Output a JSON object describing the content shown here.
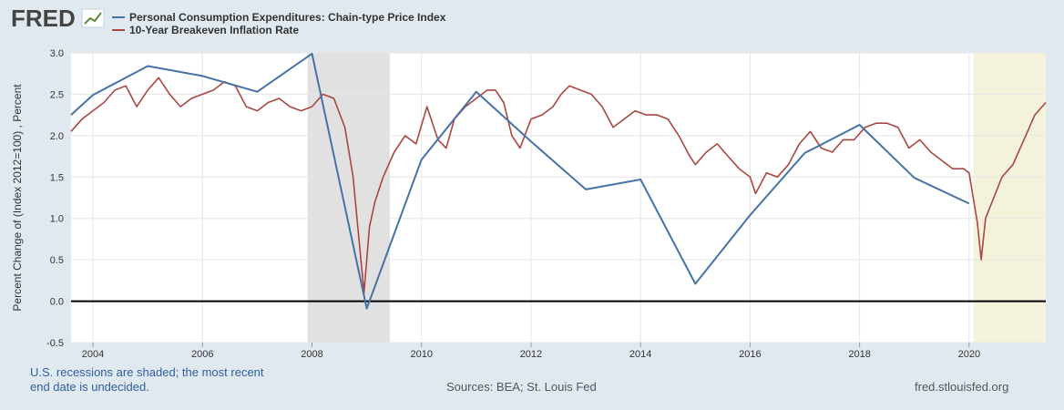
{
  "header": {
    "logo_text": "FRED",
    "logo_icon": "chart-line-icon"
  },
  "legend": [
    {
      "label": "Personal Consumption Expenditures: Chain-type Price Index",
      "color": "#4572a7"
    },
    {
      "label": "10-Year Breakeven Inflation Rate",
      "color": "#aa4643"
    }
  ],
  "footer": {
    "note_line1": "U.S. recessions are shaded; the most recent",
    "note_line2": "end date is undecided.",
    "sources": "Sources: BEA; St. Louis Fed",
    "site": "fred.stlouisfed.org"
  },
  "colors": {
    "background": "#e1e9f0",
    "plot_background": "#ffffff",
    "recession_shade": "#e1e1e1",
    "undecided_shade": "#f5f2dc",
    "pce": "#4572a7",
    "breakeven": "#aa4643"
  },
  "chart_data": {
    "type": "line",
    "title": "",
    "xlabel": "",
    "ylabel": "Percent Change of (Index 2012=100) , Percent",
    "xlim": [
      2003.6,
      2021.4
    ],
    "ylim": [
      -0.5,
      3.0
    ],
    "x_ticks": [
      2004,
      2006,
      2008,
      2010,
      2012,
      2014,
      2016,
      2018,
      2020
    ],
    "y_ticks": [
      -0.5,
      0.0,
      0.5,
      1.0,
      1.5,
      2.0,
      2.5,
      3.0
    ],
    "y_tick_labels": [
      "-0.5",
      "0.0",
      "0.5",
      "1.0",
      "1.5",
      "2.0",
      "2.5",
      "3.0"
    ],
    "zero_line": 0,
    "recessions": [
      {
        "start": 2007.92,
        "end": 2009.42,
        "kind": "recession"
      },
      {
        "start": 2020.08,
        "end": 2021.4,
        "kind": "undecided"
      }
    ],
    "series": [
      {
        "name": "Personal Consumption Expenditures: Chain-type Price Index",
        "color": "#4572a7",
        "x": [
          2003.6,
          2004,
          2005,
          2006,
          2007,
          2008,
          2009,
          2010,
          2011,
          2012,
          2013,
          2014,
          2015,
          2016,
          2017,
          2018,
          2019,
          2020
        ],
        "y": [
          2.25,
          2.49,
          2.84,
          2.72,
          2.53,
          2.99,
          -0.09,
          1.71,
          2.53,
          1.93,
          1.35,
          1.47,
          0.21,
          1.04,
          1.79,
          2.13,
          1.49,
          1.18
        ]
      },
      {
        "name": "10-Year Breakeven Inflation Rate",
        "color": "#aa4643",
        "x": [
          2003.6,
          2003.8,
          2004.0,
          2004.2,
          2004.4,
          2004.6,
          2004.8,
          2005.0,
          2005.2,
          2005.4,
          2005.6,
          2005.8,
          2006.0,
          2006.2,
          2006.4,
          2006.6,
          2006.8,
          2007.0,
          2007.2,
          2007.4,
          2007.6,
          2007.8,
          2008.0,
          2008.2,
          2008.4,
          2008.6,
          2008.75,
          2008.85,
          2008.95,
          2009.05,
          2009.15,
          2009.3,
          2009.5,
          2009.7,
          2009.9,
          2010.1,
          2010.3,
          2010.45,
          2010.6,
          2010.8,
          2011.0,
          2011.2,
          2011.35,
          2011.5,
          2011.65,
          2011.8,
          2012.0,
          2012.2,
          2012.4,
          2012.55,
          2012.7,
          2012.9,
          2013.1,
          2013.3,
          2013.5,
          2013.7,
          2013.9,
          2014.1,
          2014.3,
          2014.5,
          2014.7,
          2014.9,
          2015.0,
          2015.2,
          2015.4,
          2015.6,
          2015.8,
          2016.0,
          2016.1,
          2016.3,
          2016.5,
          2016.7,
          2016.9,
          2017.1,
          2017.3,
          2017.5,
          2017.7,
          2017.9,
          2018.1,
          2018.3,
          2018.5,
          2018.7,
          2018.9,
          2019.1,
          2019.3,
          2019.5,
          2019.7,
          2019.9,
          2020.0,
          2020.15,
          2020.22,
          2020.3,
          2020.45,
          2020.6,
          2020.8,
          2021.0,
          2021.2,
          2021.4
        ],
        "y": [
          2.05,
          2.2,
          2.3,
          2.4,
          2.55,
          2.6,
          2.35,
          2.55,
          2.7,
          2.5,
          2.35,
          2.45,
          2.5,
          2.55,
          2.65,
          2.6,
          2.35,
          2.3,
          2.4,
          2.45,
          2.35,
          2.3,
          2.35,
          2.5,
          2.45,
          2.1,
          1.5,
          0.8,
          0.1,
          0.9,
          1.2,
          1.5,
          1.8,
          2.0,
          1.9,
          2.35,
          1.95,
          1.85,
          2.2,
          2.35,
          2.45,
          2.55,
          2.55,
          2.4,
          2.0,
          1.85,
          2.2,
          2.25,
          2.35,
          2.5,
          2.6,
          2.55,
          2.5,
          2.35,
          2.1,
          2.2,
          2.3,
          2.25,
          2.25,
          2.2,
          2.0,
          1.75,
          1.65,
          1.8,
          1.9,
          1.75,
          1.6,
          1.5,
          1.3,
          1.55,
          1.5,
          1.65,
          1.9,
          2.05,
          1.85,
          1.8,
          1.95,
          1.95,
          2.1,
          2.15,
          2.15,
          2.1,
          1.85,
          1.95,
          1.8,
          1.7,
          1.6,
          1.6,
          1.55,
          0.95,
          0.5,
          1.0,
          1.25,
          1.5,
          1.65,
          1.95,
          2.25,
          2.4
        ]
      }
    ]
  }
}
